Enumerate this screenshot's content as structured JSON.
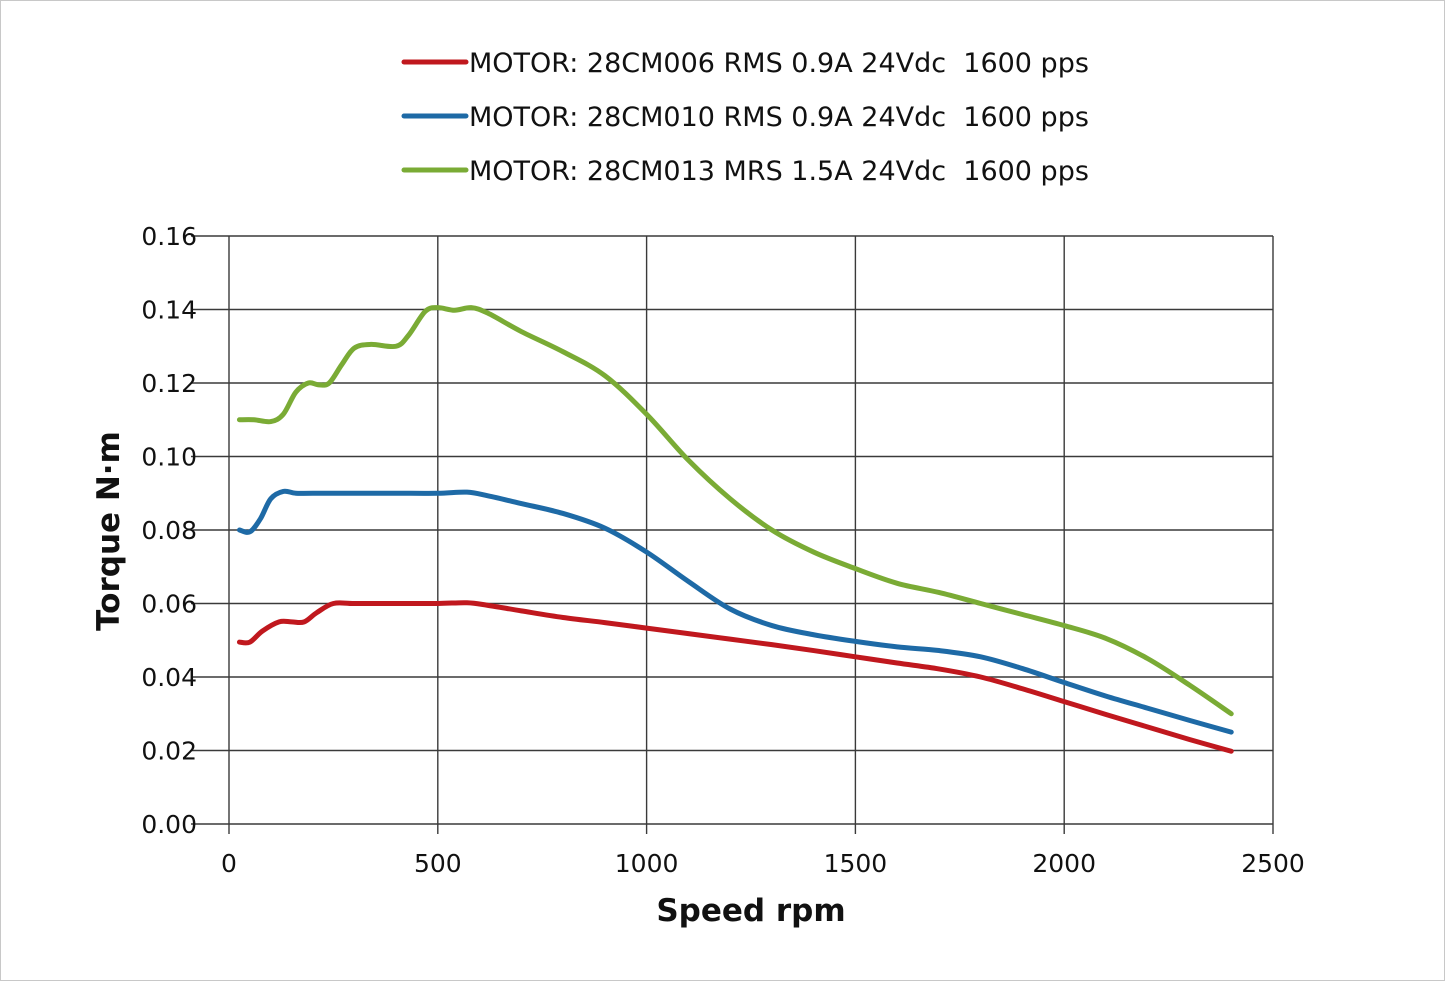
{
  "chart_data": {
    "type": "line",
    "title": "",
    "xlabel": "Speed rpm",
    "ylabel": "Torque N·m",
    "xlim": [
      0,
      2500
    ],
    "ylim": [
      0,
      0.16
    ],
    "x_ticks": [
      0,
      500,
      1000,
      1500,
      2000,
      2500
    ],
    "x_tick_labels": [
      "0",
      "500",
      "1000",
      "1500",
      "2000",
      "2500"
    ],
    "y_ticks": [
      0,
      0.02,
      0.04,
      0.06,
      0.08,
      0.1,
      0.12,
      0.14,
      0.16
    ],
    "y_tick_labels": [
      "0.00",
      "0.02",
      "0.04",
      "0.06",
      "0.08",
      "0.10",
      "0.12",
      "0.14",
      "0.16"
    ],
    "grid": true,
    "legend_position": "top-center",
    "series": [
      {
        "name": "MOTOR: 28CM006 RMS 0.9A 24Vdc  1600 pps",
        "color": "#c0181e",
        "points": [
          [
            25,
            0.0495
          ],
          [
            50,
            0.0495
          ],
          [
            80,
            0.0525
          ],
          [
            120,
            0.055
          ],
          [
            150,
            0.055
          ],
          [
            180,
            0.055
          ],
          [
            210,
            0.0575
          ],
          [
            250,
            0.06
          ],
          [
            300,
            0.06
          ],
          [
            400,
            0.06
          ],
          [
            500,
            0.06
          ],
          [
            570,
            0.0602
          ],
          [
            620,
            0.0595
          ],
          [
            700,
            0.058
          ],
          [
            800,
            0.0562
          ],
          [
            900,
            0.0548
          ],
          [
            1000,
            0.0533
          ],
          [
            1100,
            0.0518
          ],
          [
            1200,
            0.0503
          ],
          [
            1300,
            0.0488
          ],
          [
            1400,
            0.0472
          ],
          [
            1500,
            0.0455
          ],
          [
            1600,
            0.0438
          ],
          [
            1700,
            0.0422
          ],
          [
            1800,
            0.04
          ],
          [
            1900,
            0.0368
          ],
          [
            2000,
            0.0333
          ],
          [
            2100,
            0.0298
          ],
          [
            2200,
            0.0264
          ],
          [
            2300,
            0.023
          ],
          [
            2400,
            0.0198
          ]
        ]
      },
      {
        "name": "MOTOR: 28CM010 RMS 0.9A 24Vdc  1600 pps",
        "color": "#1e6aa6",
        "points": [
          [
            25,
            0.08
          ],
          [
            50,
            0.0795
          ],
          [
            75,
            0.083
          ],
          [
            100,
            0.0885
          ],
          [
            130,
            0.0905
          ],
          [
            160,
            0.09
          ],
          [
            200,
            0.09
          ],
          [
            300,
            0.09
          ],
          [
            400,
            0.09
          ],
          [
            500,
            0.09
          ],
          [
            570,
            0.0903
          ],
          [
            620,
            0.0893
          ],
          [
            700,
            0.0872
          ],
          [
            800,
            0.0845
          ],
          [
            900,
            0.0805
          ],
          [
            1000,
            0.074
          ],
          [
            1100,
            0.066
          ],
          [
            1200,
            0.0585
          ],
          [
            1300,
            0.054
          ],
          [
            1400,
            0.0515
          ],
          [
            1500,
            0.0497
          ],
          [
            1600,
            0.0482
          ],
          [
            1700,
            0.0472
          ],
          [
            1800,
            0.0455
          ],
          [
            1900,
            0.0423
          ],
          [
            2000,
            0.0385
          ],
          [
            2100,
            0.0348
          ],
          [
            2200,
            0.0315
          ],
          [
            2300,
            0.0282
          ],
          [
            2400,
            0.025
          ]
        ]
      },
      {
        "name": "MOTOR: 28CM013 MRS 1.5A 24Vdc  1600 pps",
        "color": "#7aab35",
        "points": [
          [
            25,
            0.11
          ],
          [
            60,
            0.11
          ],
          [
            100,
            0.1095
          ],
          [
            130,
            0.1115
          ],
          [
            160,
            0.1175
          ],
          [
            190,
            0.12
          ],
          [
            215,
            0.1195
          ],
          [
            240,
            0.12
          ],
          [
            270,
            0.125
          ],
          [
            300,
            0.1295
          ],
          [
            340,
            0.1305
          ],
          [
            400,
            0.13
          ],
          [
            430,
            0.133
          ],
          [
            470,
            0.1395
          ],
          [
            500,
            0.1405
          ],
          [
            540,
            0.1398
          ],
          [
            580,
            0.1405
          ],
          [
            620,
            0.139
          ],
          [
            700,
            0.134
          ],
          [
            800,
            0.1285
          ],
          [
            900,
            0.122
          ],
          [
            1000,
            0.1115
          ],
          [
            1100,
            0.099
          ],
          [
            1200,
            0.0885
          ],
          [
            1300,
            0.08
          ],
          [
            1400,
            0.074
          ],
          [
            1500,
            0.0695
          ],
          [
            1600,
            0.0655
          ],
          [
            1700,
            0.063
          ],
          [
            1800,
            0.06
          ],
          [
            1900,
            0.057
          ],
          [
            2000,
            0.054
          ],
          [
            2100,
            0.0505
          ],
          [
            2200,
            0.045
          ],
          [
            2300,
            0.0378
          ],
          [
            2400,
            0.03
          ]
        ]
      }
    ]
  }
}
